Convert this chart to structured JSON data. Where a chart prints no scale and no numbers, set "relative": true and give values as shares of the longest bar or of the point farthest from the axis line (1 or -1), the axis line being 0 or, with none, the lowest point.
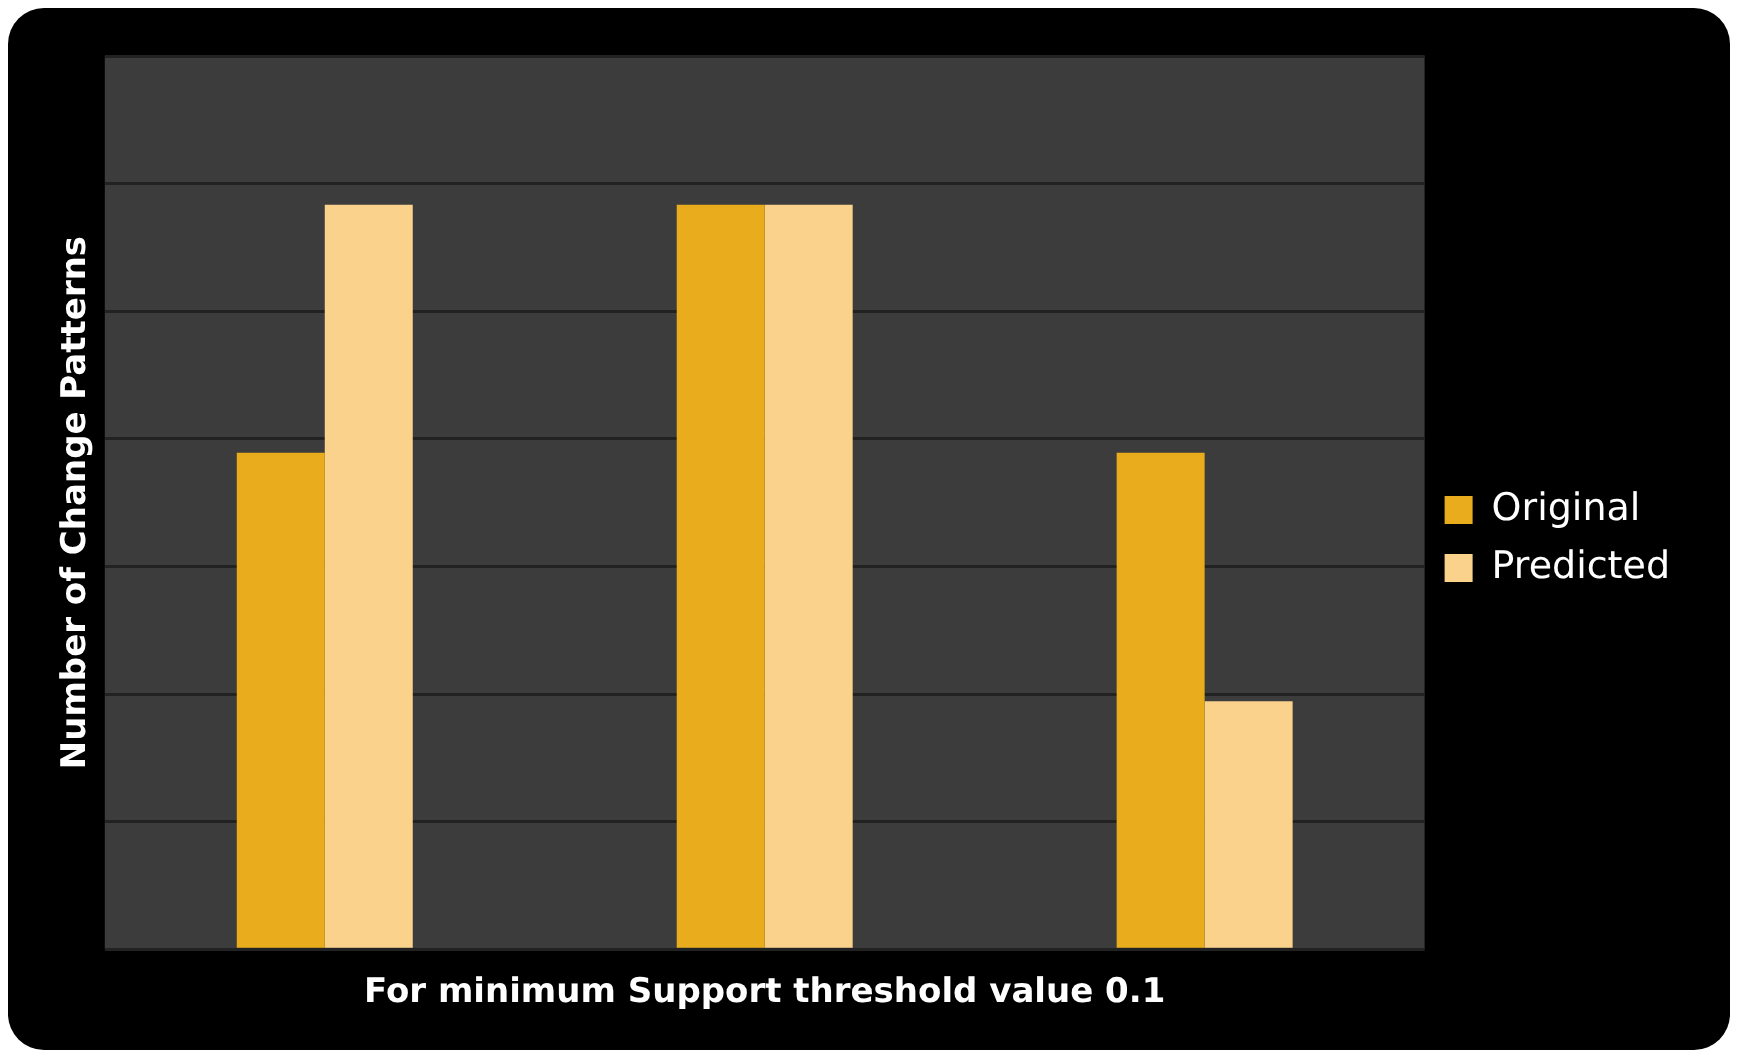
{
  "chart_data": {
    "type": "bar",
    "relative": true,
    "xlabel": "For minimum Support threshold value 0.1",
    "ylabel": "Number of Change Patterns",
    "categories": [
      null,
      null,
      null
    ],
    "series": [
      {
        "name": "Original",
        "color": "#e8ac1c",
        "values": [
          0.667,
          1,
          0.667
        ]
      },
      {
        "name": "Predicted",
        "color": "#fad28c",
        "values": [
          1,
          1,
          0.333
        ]
      }
    ],
    "grid": "y",
    "legend": "right"
  }
}
